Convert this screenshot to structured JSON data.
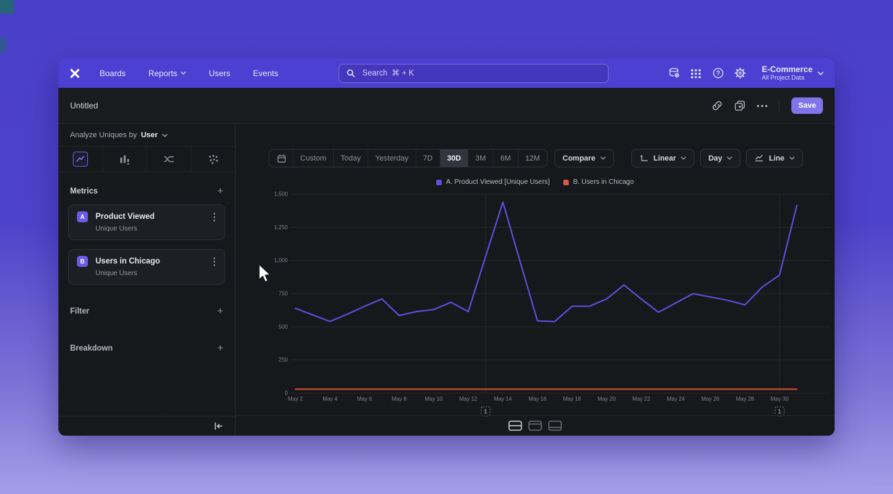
{
  "nav": {
    "items": [
      {
        "label": "Boards"
      },
      {
        "label": "Reports"
      },
      {
        "label": "Users"
      },
      {
        "label": "Events"
      }
    ],
    "search_placeholder": "Search  ⌘ + K",
    "icons": [
      "data-settings-icon",
      "apps-grid-icon",
      "help-icon",
      "settings-icon"
    ],
    "project_name": "E-Commerce",
    "project_subtitle": "All Project Data"
  },
  "titlebar": {
    "title": "Untitled",
    "icons": [
      "link-icon",
      "duplicate-icon",
      "more-options-icon"
    ],
    "save_label": "Save"
  },
  "sidebar": {
    "analyze_prefix": "Analyze Uniques by",
    "analyze_value": "User",
    "chart_type_tabs": [
      "line-chart",
      "bar-chart",
      "flow",
      "scatter"
    ],
    "selected_chart_type": "line-chart",
    "metrics_header": "Metrics",
    "add_label": "+",
    "metrics": [
      {
        "badge": "A",
        "title": "Product Viewed",
        "subtitle": "Unique Users"
      },
      {
        "badge": "B",
        "title": "Users in Chicago",
        "subtitle": "Unique Users"
      }
    ],
    "filter_header": "Filter",
    "breakdown_header": "Breakdown",
    "collapse_icon": "collapse-left-icon"
  },
  "toolbar": {
    "ranges": [
      "Custom",
      "Today",
      "Yesterday",
      "7D",
      "30D",
      "3M",
      "6M",
      "12M"
    ],
    "selected_range": "30D",
    "compare_label": "Compare",
    "scale_label": "Linear",
    "interval_label": "Day",
    "chart_type_label": "Line"
  },
  "chart_data": {
    "type": "line",
    "title": "",
    "grid": true,
    "legend_position": "top",
    "ylim": [
      0,
      1500
    ],
    "y_ticks": [
      0,
      250,
      500,
      750,
      1000,
      1250,
      1500
    ],
    "y_tick_labels": [
      "0",
      "250",
      "500",
      "750",
      "1,000",
      "1,250",
      "1,500"
    ],
    "dates": [
      "May 2",
      "May 3",
      "May 4",
      "May 5",
      "May 6",
      "May 7",
      "May 8",
      "May 9",
      "May 10",
      "May 11",
      "May 12",
      "May 13",
      "May 14",
      "May 15",
      "May 16",
      "May 17",
      "May 18",
      "May 19",
      "May 20",
      "May 21",
      "May 22",
      "May 23",
      "May 24",
      "May 25",
      "May 26",
      "May 27",
      "May 28",
      "May 29",
      "May 30",
      "May 31"
    ],
    "x_tick_labels": [
      "May 2",
      "May 4",
      "May 6",
      "May 8",
      "May 10",
      "May 12",
      "May 14",
      "May 16",
      "May 18",
      "May 20",
      "May 22",
      "May 24",
      "May 26",
      "May 28",
      "May 30"
    ],
    "series": [
      {
        "name": "A. Product Viewed [Unique Users]",
        "color": "#5f50e5",
        "values": [
          640,
          590,
          540,
          595,
          655,
          710,
          585,
          615,
          630,
          685,
          615,
          1030,
          1440,
          990,
          545,
          540,
          655,
          655,
          710,
          815,
          710,
          610,
          680,
          750,
          725,
          700,
          665,
          800,
          890,
          1415
        ]
      },
      {
        "name": "B. Users in Chicago",
        "color": "#d6512f",
        "swatch": "#d95b40",
        "values": [
          30,
          30,
          30,
          30,
          30,
          30,
          30,
          30,
          30,
          30,
          30,
          30,
          30,
          30,
          30,
          30,
          30,
          30,
          30,
          30,
          30,
          30,
          30,
          30,
          30,
          30,
          30,
          30,
          30,
          30
        ]
      }
    ],
    "annotations": [
      {
        "label": "1",
        "date": "May 13"
      },
      {
        "label": "1",
        "date": "May 30"
      }
    ]
  },
  "footer": {
    "layout_options": [
      "split-view",
      "chart-focus",
      "table-focus"
    ],
    "selected_index": 0
  }
}
